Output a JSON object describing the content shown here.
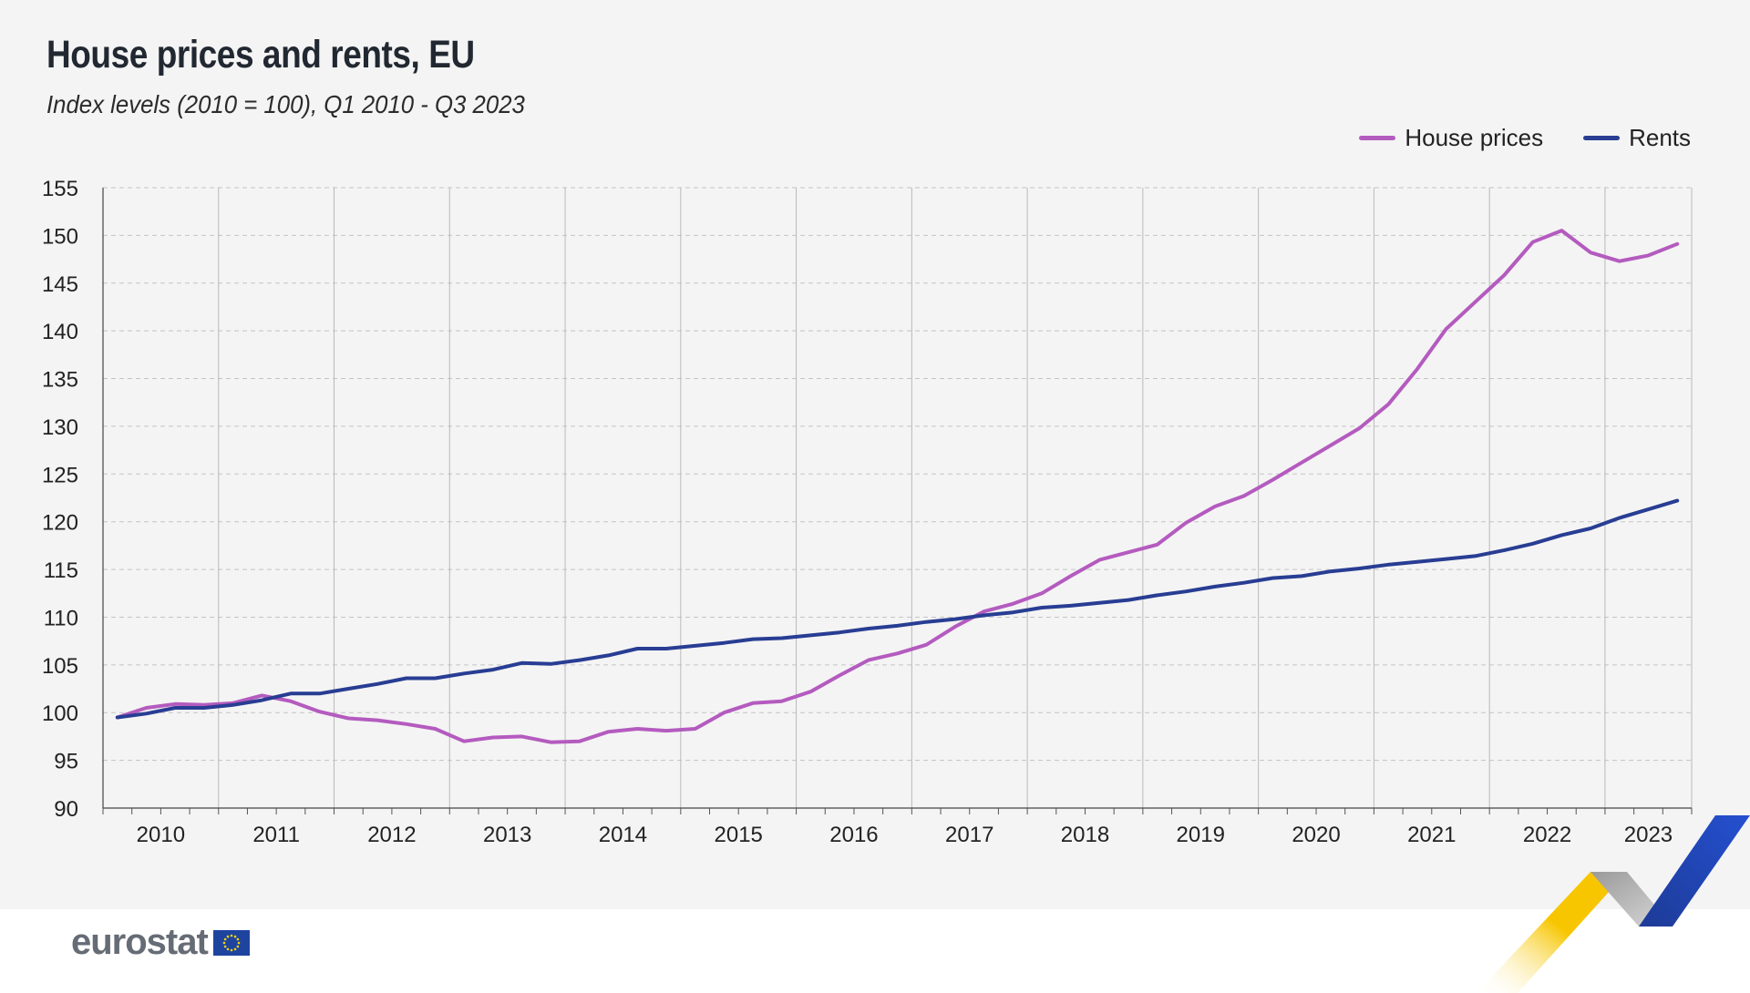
{
  "header": {
    "title": "House prices and rents, EU",
    "subtitle": "Index levels (2010 = 100), Q1 2010 - Q3 2023"
  },
  "legend": [
    {
      "label": "House prices",
      "color": "#b45bbf"
    },
    {
      "label": "Rents",
      "color": "#283d93"
    }
  ],
  "branding": {
    "logo_text": "eurostat",
    "flag_icon": "eu-flag-icon"
  },
  "chart_data": {
    "type": "line",
    "title": "House prices and rents, EU",
    "subtitle": "Index levels (2010 = 100), Q1 2010 - Q3 2023",
    "xlabel": "",
    "ylabel": "",
    "ylim": [
      90,
      155
    ],
    "yticks": [
      90,
      95,
      100,
      105,
      110,
      115,
      120,
      125,
      130,
      135,
      140,
      145,
      150,
      155
    ],
    "year_labels": [
      "2010",
      "2011",
      "2012",
      "2013",
      "2014",
      "2015",
      "2016",
      "2017",
      "2018",
      "2019",
      "2020",
      "2021",
      "2022",
      "2023"
    ],
    "quarters": 55,
    "grid": true,
    "legend_position": "top-right",
    "series": [
      {
        "name": "House prices",
        "color": "#b45bbf",
        "values": [
          99.5,
          100.5,
          100.9,
          100.8,
          101.0,
          101.8,
          101.2,
          100.1,
          99.4,
          99.2,
          98.8,
          98.3,
          97.0,
          97.4,
          97.5,
          96.9,
          97.0,
          98.0,
          98.3,
          98.1,
          98.3,
          100.0,
          101.0,
          101.2,
          102.2,
          103.9,
          105.5,
          106.2,
          107.1,
          109.0,
          110.6,
          111.4,
          112.5,
          114.3,
          116.0,
          116.8,
          117.6,
          119.9,
          121.6,
          122.7,
          124.4,
          126.2,
          128.0,
          129.8,
          132.3,
          136.0,
          140.2,
          143.0,
          145.8,
          149.3,
          150.5,
          148.2,
          147.3,
          147.9,
          149.1
        ]
      },
      {
        "name": "Rents",
        "color": "#283d93",
        "values": [
          99.5,
          99.9,
          100.5,
          100.5,
          100.8,
          101.3,
          102.0,
          102.0,
          102.5,
          103.0,
          103.6,
          103.6,
          104.1,
          104.5,
          105.2,
          105.1,
          105.5,
          106.0,
          106.7,
          106.7,
          107.0,
          107.3,
          107.7,
          107.8,
          108.1,
          108.4,
          108.8,
          109.1,
          109.5,
          109.8,
          110.2,
          110.5,
          111.0,
          111.2,
          111.5,
          111.8,
          112.3,
          112.7,
          113.2,
          113.6,
          114.1,
          114.3,
          114.8,
          115.1,
          115.5,
          115.8,
          116.1,
          116.4,
          117.0,
          117.7,
          118.6,
          119.3,
          120.4,
          121.3,
          122.2
        ]
      }
    ]
  }
}
